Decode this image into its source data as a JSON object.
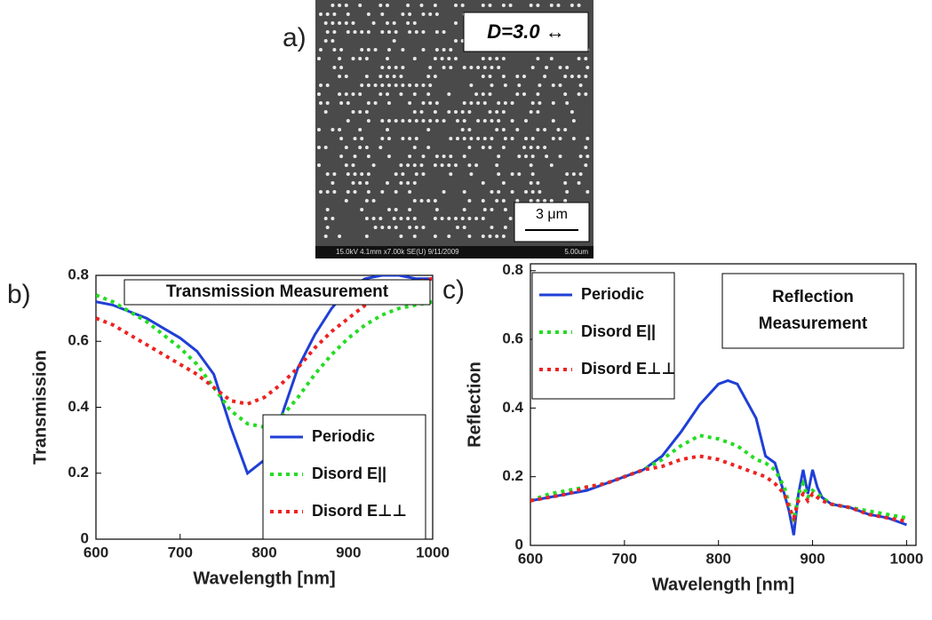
{
  "panel_labels": [
    "a)",
    "b)",
    "c)"
  ],
  "sem": {
    "annotation": "D=3.0 ↔",
    "scale_bar": "3 μm",
    "footer": "15.0kV 4.1mm x7.00k SE(U) 9/11/2009",
    "footer_right": "5.00um"
  },
  "chart_data": [
    {
      "type": "line",
      "annotation": [
        "Transmission Measurement"
      ],
      "x_label": "Wavelength [nm]",
      "y_label": "Transmission",
      "x": [
        600,
        620,
        640,
        660,
        680,
        700,
        720,
        740,
        760,
        780,
        800,
        820,
        840,
        860,
        880,
        900,
        920,
        940,
        960,
        980,
        1000
      ],
      "series": [
        {
          "name": "Periodic",
          "color": "#1f3fd6",
          "style": "solid",
          "values": [
            0.72,
            0.71,
            0.69,
            0.67,
            0.64,
            0.61,
            0.57,
            0.5,
            0.34,
            0.2,
            0.24,
            0.37,
            0.52,
            0.62,
            0.7,
            0.76,
            0.79,
            0.8,
            0.8,
            0.79,
            0.79
          ]
        },
        {
          "name": "Disord E||",
          "color": "#22dd22",
          "style": "dotted",
          "values": [
            0.74,
            0.72,
            0.69,
            0.66,
            0.62,
            0.58,
            0.53,
            0.46,
            0.39,
            0.35,
            0.34,
            0.37,
            0.43,
            0.5,
            0.56,
            0.61,
            0.65,
            0.68,
            0.7,
            0.71,
            0.72
          ]
        },
        {
          "name": "Disord E⊥⊥",
          "color": "#ee2222",
          "style": "dotted",
          "values": [
            0.67,
            0.65,
            0.62,
            0.59,
            0.56,
            0.53,
            0.5,
            0.46,
            0.42,
            0.41,
            0.43,
            0.47,
            0.52,
            0.58,
            0.63,
            0.67,
            0.71,
            0.74,
            0.76,
            0.78,
            0.79
          ]
        }
      ],
      "xlim": [
        600,
        1000
      ],
      "xticks": [
        600,
        700,
        800,
        900,
        1000
      ],
      "ylim": [
        0,
        0.8
      ],
      "yticks": [
        0,
        0.2,
        0.4,
        0.6,
        0.8
      ],
      "legend": "lower right"
    },
    {
      "type": "line",
      "annotation": [
        "Reflection",
        "Measurement"
      ],
      "x_label": "Wavelength [nm]",
      "y_label": "Reflection",
      "x": [
        600,
        620,
        640,
        660,
        680,
        700,
        720,
        740,
        760,
        780,
        800,
        810,
        820,
        840,
        850,
        860,
        870,
        875,
        880,
        885,
        890,
        895,
        900,
        905,
        910,
        920,
        940,
        960,
        980,
        1000
      ],
      "series": [
        {
          "name": "Periodic",
          "color": "#1f3fd6",
          "style": "solid",
          "values": [
            0.13,
            0.14,
            0.15,
            0.16,
            0.18,
            0.2,
            0.22,
            0.26,
            0.33,
            0.41,
            0.47,
            0.48,
            0.47,
            0.37,
            0.26,
            0.24,
            0.15,
            0.1,
            0.03,
            0.15,
            0.22,
            0.15,
            0.22,
            0.17,
            0.14,
            0.12,
            0.11,
            0.09,
            0.08,
            0.06
          ]
        },
        {
          "name": "Disord E||",
          "color": "#22dd22",
          "style": "dotted",
          "values": [
            0.13,
            0.15,
            0.16,
            0.17,
            0.18,
            0.2,
            0.22,
            0.25,
            0.29,
            0.32,
            0.31,
            0.3,
            0.29,
            0.25,
            0.24,
            0.22,
            0.17,
            0.12,
            0.07,
            0.15,
            0.18,
            0.14,
            0.16,
            0.15,
            0.14,
            0.12,
            0.11,
            0.1,
            0.09,
            0.08
          ]
        },
        {
          "name": "Disord E⊥⊥",
          "color": "#ee2222",
          "style": "dotted",
          "values": [
            0.13,
            0.14,
            0.15,
            0.17,
            0.18,
            0.2,
            0.22,
            0.23,
            0.25,
            0.26,
            0.25,
            0.24,
            0.23,
            0.21,
            0.2,
            0.18,
            0.15,
            0.11,
            0.08,
            0.13,
            0.15,
            0.13,
            0.15,
            0.14,
            0.13,
            0.12,
            0.11,
            0.09,
            0.08,
            0.07
          ]
        }
      ],
      "xlim": [
        600,
        1010
      ],
      "xticks": [
        600,
        700,
        800,
        900,
        1000
      ],
      "ylim": [
        0,
        0.82
      ],
      "yticks": [
        0,
        0.2,
        0.4,
        0.6,
        0.8
      ],
      "legend": "upper left"
    }
  ]
}
